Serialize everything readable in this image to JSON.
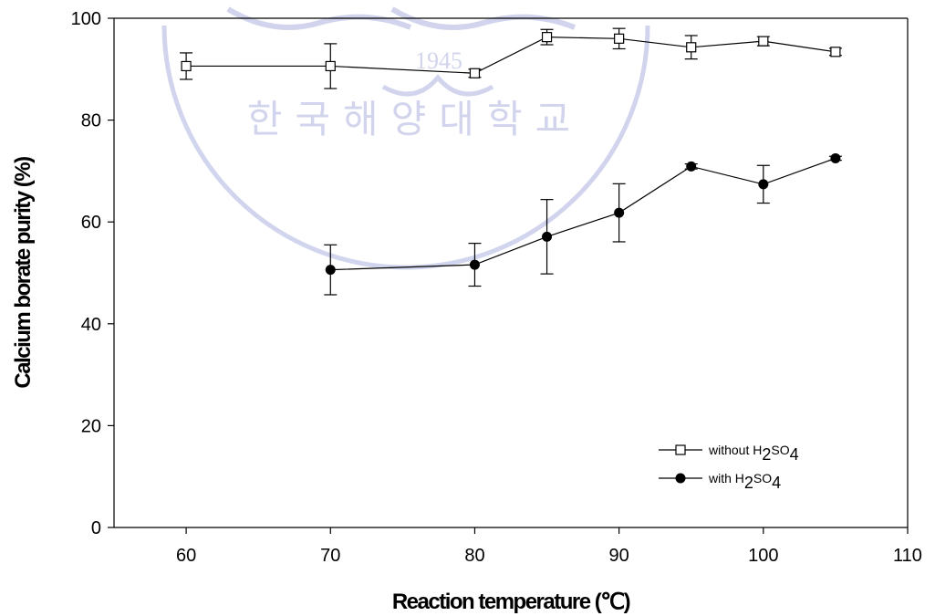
{
  "chart_data": {
    "type": "scatter",
    "xlabel": "Reaction temperature (℃)",
    "ylabel": "Calcium borate purity (%)",
    "xlim": [
      55,
      110
    ],
    "ylim": [
      0,
      100
    ],
    "xticks": [
      60,
      70,
      80,
      90,
      100,
      110
    ],
    "yticks": [
      0,
      20,
      40,
      60,
      80,
      100
    ],
    "legend_position": "bottom-right",
    "grid": false,
    "series": [
      {
        "name": "without H2SO4",
        "marker": "open-square",
        "color": "#000000",
        "x": [
          60,
          70,
          80,
          85,
          90,
          95,
          100,
          105
        ],
        "y": [
          90.6,
          90.6,
          89.2,
          96.3,
          96.0,
          94.3,
          95.5,
          93.4
        ],
        "err": [
          2.6,
          4.4,
          0.8,
          1.5,
          2.0,
          2.3,
          0.9,
          0.7
        ]
      },
      {
        "name": "with H2SO4",
        "marker": "filled-circle",
        "color": "#000000",
        "x": [
          70,
          80,
          85,
          90,
          95,
          100,
          105
        ],
        "y": [
          50.6,
          51.6,
          57.1,
          61.8,
          70.9,
          67.4,
          72.5
        ],
        "err": [
          4.9,
          4.2,
          7.3,
          5.7,
          0.5,
          3.7,
          0.4
        ]
      }
    ],
    "legend": {
      "entries": [
        {
          "prefix": "without H",
          "sub1": "2",
          "mid": "SO",
          "sub2": "4"
        },
        {
          "prefix": "with H",
          "sub1": "2",
          "mid": "SO",
          "sub2": "4"
        }
      ]
    },
    "watermark": {
      "year": "1945",
      "text": "한국해양대학교"
    }
  }
}
